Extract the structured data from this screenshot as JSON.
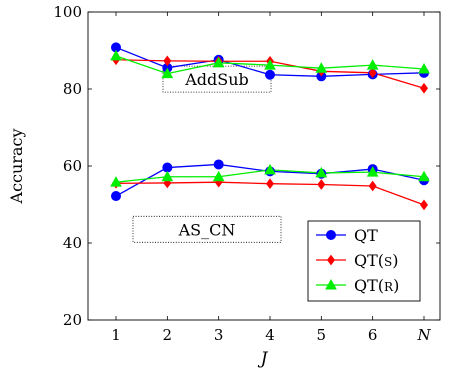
{
  "chart_data": {
    "type": "line",
    "xlabel": "J",
    "ylabel": "Accuracy",
    "categories": [
      "1",
      "2",
      "3",
      "4",
      "5",
      "6",
      "N"
    ],
    "ylim": [
      20,
      100
    ],
    "yticks": [
      20,
      40,
      60,
      80,
      100
    ],
    "grid": false,
    "legend_position": "bottom-right",
    "annotations": [
      {
        "text": "AddSub",
        "y": 81
      },
      {
        "text": "AS_CN",
        "y": 42
      }
    ],
    "series": [
      {
        "name": "QT",
        "group": "AddSub",
        "color": "#0000ff",
        "marker": "circle",
        "values": [
          90.8,
          85.5,
          87.6,
          83.7,
          83.3,
          83.8,
          84.2
        ]
      },
      {
        "name": "QT(S)",
        "group": "AddSub",
        "color": "#ff0000",
        "marker": "diamond",
        "values": [
          87.6,
          87.3,
          87.2,
          87.2,
          84.6,
          84.2,
          80.2
        ]
      },
      {
        "name": "QT(R)",
        "group": "AddSub",
        "color": "#00ee00",
        "marker": "triangle",
        "values": [
          88.6,
          84.0,
          86.8,
          86.2,
          85.4,
          86.2,
          85.2
        ]
      },
      {
        "name": "QT",
        "group": "AS_CN",
        "color": "#0000ff",
        "marker": "circle",
        "values": [
          52.2,
          59.6,
          60.4,
          58.6,
          58.0,
          59.2,
          56.3
        ]
      },
      {
        "name": "QT(S)",
        "group": "AS_CN",
        "color": "#ff0000",
        "marker": "diamond",
        "values": [
          55.5,
          55.6,
          55.8,
          55.4,
          55.2,
          54.8,
          49.9
        ]
      },
      {
        "name": "QT(R)",
        "group": "AS_CN",
        "color": "#00ee00",
        "marker": "triangle",
        "values": [
          55.8,
          57.2,
          57.2,
          59.0,
          58.2,
          58.4,
          57.2
        ]
      }
    ],
    "legend": [
      {
        "label_main": "QT",
        "label_paren": "",
        "color": "#0000ff",
        "marker": "circle"
      },
      {
        "label_main": "QT",
        "label_paren": "S",
        "color": "#ff0000",
        "marker": "diamond"
      },
      {
        "label_main": "QT",
        "label_paren": "R",
        "color": "#00ee00",
        "marker": "triangle"
      }
    ]
  }
}
